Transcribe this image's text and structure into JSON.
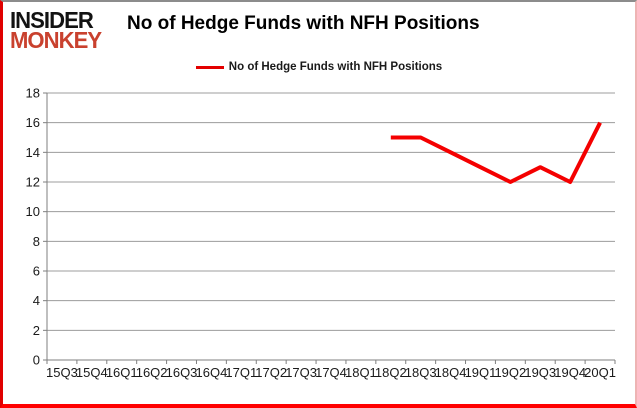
{
  "logo": {
    "line1": "INSIDER",
    "line2": "MONKEY",
    "line1_color": "#121212",
    "line2_color": "#c9412e"
  },
  "header": {
    "title": "No of Hedge Funds with NFH Positions"
  },
  "legend": {
    "label": "No of Hedge Funds with NFH Positions",
    "line_color": "#e30000"
  },
  "chart_data": {
    "type": "line",
    "title": "No of Hedge Funds with NFH Positions",
    "categories": [
      "15Q3",
      "15Q4",
      "16Q1",
      "16Q2",
      "16Q3",
      "16Q4",
      "17Q1",
      "17Q2",
      "17Q3",
      "17Q4",
      "18Q1",
      "18Q2",
      "18Q3",
      "18Q4",
      "19Q1",
      "19Q2",
      "19Q3",
      "19Q4",
      "20Q1"
    ],
    "series": [
      {
        "name": "No of Hedge Funds with NFH Positions",
        "values": [
          null,
          null,
          null,
          null,
          null,
          null,
          null,
          null,
          null,
          null,
          null,
          15,
          15,
          14,
          13,
          12,
          13,
          12,
          16
        ],
        "color": "#f40000"
      }
    ],
    "xlabel": "",
    "ylabel": "",
    "ylim": [
      0,
      18
    ],
    "ytick_step": 2,
    "grid": true,
    "legend_position": "top",
    "colors": {
      "grid": "#9c9c9c",
      "axis": "#7f7f7f",
      "tick_label": "#1a1a1a",
      "background": "#ffffff"
    }
  }
}
